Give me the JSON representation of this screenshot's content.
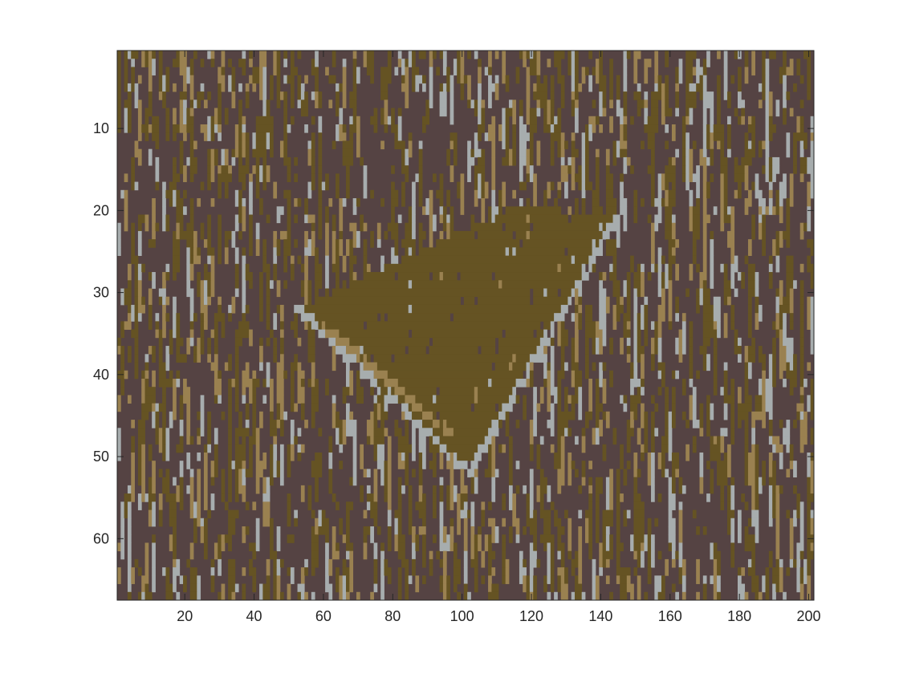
{
  "chart_data": {
    "type": "heatmap",
    "title": "",
    "xlabel": "",
    "ylabel": "",
    "xlim": [
      0.5,
      201.5
    ],
    "ylim": [
      0.5,
      67.5
    ],
    "y_direction": "reversed",
    "grid": false,
    "x_ticks": [
      20,
      40,
      60,
      80,
      100,
      120,
      140,
      160,
      180,
      200
    ],
    "y_ticks": [
      10,
      20,
      30,
      40,
      50,
      60
    ],
    "x_tick_labels": [
      "20",
      "40",
      "60",
      "80",
      "100",
      "120",
      "140",
      "160",
      "180",
      "200"
    ],
    "y_tick_labels": [
      "10",
      "20",
      "30",
      "40",
      "50",
      "60"
    ],
    "levels": 4,
    "colormap": [
      "#554343",
      "#655323",
      "#9a8150",
      "#a7adae"
    ],
    "level_fractions": [
      0.58,
      0.22,
      0.1,
      0.1
    ],
    "features": [
      {
        "shape": "quad",
        "vertices": [
          [
            53,
            32
          ],
          [
            118,
            19
          ],
          [
            143,
            21
          ],
          [
            102,
            52
          ]
        ],
        "level": 1
      },
      {
        "shape": "line",
        "from": [
          53,
          32
        ],
        "to": [
          102,
          52
        ],
        "level": 3
      },
      {
        "shape": "line",
        "from": [
          143,
          22
        ],
        "to": [
          102,
          52
        ],
        "level": 3
      },
      {
        "shape": "line",
        "from": [
          60,
          34
        ],
        "to": [
          96,
          47
        ],
        "level": 2
      }
    ]
  }
}
